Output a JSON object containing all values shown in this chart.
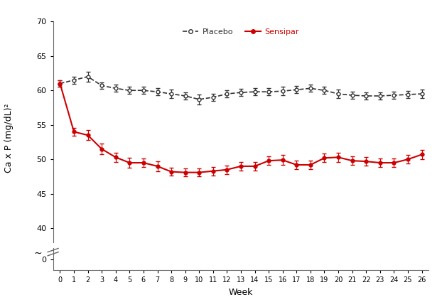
{
  "weeks": [
    0,
    1,
    2,
    3,
    4,
    5,
    6,
    7,
    8,
    9,
    10,
    11,
    12,
    13,
    14,
    15,
    16,
    17,
    18,
    19,
    20,
    21,
    22,
    23,
    24,
    25,
    26
  ],
  "placebo_mean": [
    61.0,
    61.5,
    62.0,
    60.7,
    60.3,
    60.0,
    60.0,
    59.8,
    59.5,
    59.2,
    58.7,
    59.0,
    59.5,
    59.7,
    59.8,
    59.8,
    59.9,
    60.1,
    60.3,
    60.0,
    59.5,
    59.3,
    59.2,
    59.2,
    59.3,
    59.4,
    59.5
  ],
  "placebo_se": [
    0.5,
    0.5,
    0.7,
    0.5,
    0.5,
    0.5,
    0.5,
    0.5,
    0.6,
    0.5,
    0.7,
    0.5,
    0.5,
    0.5,
    0.5,
    0.5,
    0.6,
    0.5,
    0.5,
    0.5,
    0.6,
    0.5,
    0.5,
    0.5,
    0.5,
    0.5,
    0.6
  ],
  "sensipar_mean": [
    61.0,
    54.0,
    53.5,
    51.5,
    50.3,
    49.5,
    49.5,
    49.0,
    48.2,
    48.1,
    48.1,
    48.3,
    48.5,
    49.0,
    49.0,
    49.8,
    49.9,
    49.2,
    49.2,
    50.2,
    50.3,
    49.8,
    49.7,
    49.5,
    49.5,
    50.0,
    50.7
  ],
  "sensipar_se": [
    0.5,
    0.6,
    0.7,
    0.8,
    0.7,
    0.7,
    0.6,
    0.7,
    0.6,
    0.6,
    0.6,
    0.6,
    0.6,
    0.6,
    0.6,
    0.6,
    0.7,
    0.6,
    0.6,
    0.6,
    0.7,
    0.6,
    0.6,
    0.6,
    0.6,
    0.6,
    0.7
  ],
  "placebo_color": "#333333",
  "sensipar_color": "#cc0000",
  "xlabel": "Week",
  "ylabel": "Ca x P (mg/dL)²",
  "ylim_bottom": 0,
  "ylim_top": 70,
  "xticks": [
    0,
    1,
    2,
    3,
    4,
    5,
    6,
    7,
    8,
    9,
    10,
    11,
    12,
    13,
    14,
    15,
    16,
    17,
    18,
    19,
    20,
    21,
    22,
    23,
    24,
    25,
    26
  ],
  "legend_placebo": "Placebo",
  "legend_sensipar": "Sensipar",
  "bg_color": "#ffffff"
}
